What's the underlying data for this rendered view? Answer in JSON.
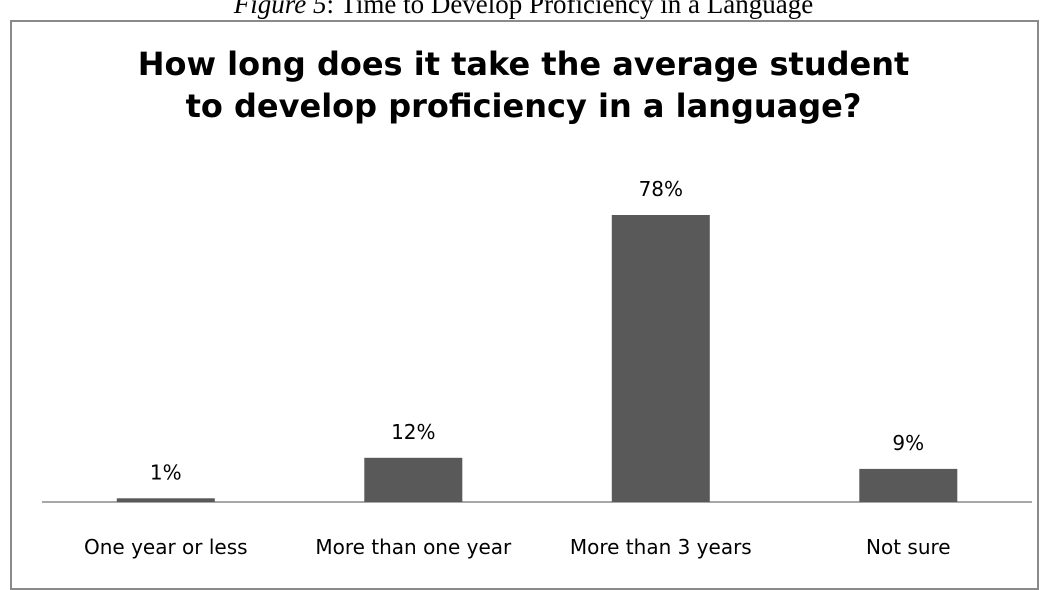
{
  "figure_caption": {
    "number": "Figure 5",
    "text": "Time to Develop Proficiency in a Language"
  },
  "chart_data": {
    "type": "bar",
    "title_lines": [
      "How long does it take the average student",
      "to develop proficiency in a language?"
    ],
    "categories": [
      "One year or less",
      "More than one year",
      "More than 3 years",
      "Not sure"
    ],
    "values": [
      1,
      12,
      78,
      9
    ],
    "data_labels": [
      "1%",
      "12%",
      "78%",
      "9%"
    ],
    "ylim": [
      0,
      90
    ],
    "grid": false,
    "bar_color": "#595959"
  }
}
